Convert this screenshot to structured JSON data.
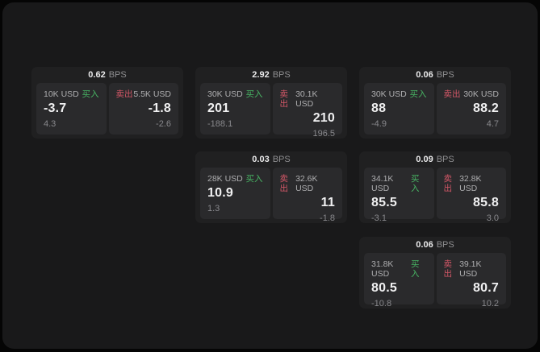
{
  "colors": {
    "buy_green": "#48b564",
    "sell_red": "#d35767",
    "window_bg": "#19191a",
    "card_bg": "#202021",
    "panel_bg": "#2a2a2c"
  },
  "cards": [
    {
      "bps_value": "0.62",
      "bps_unit": "BPS",
      "buy": {
        "amount": "10K USD",
        "side_label": "买入",
        "value": "-3.7",
        "sub_value": "4.3"
      },
      "sell": {
        "side_label": "卖出",
        "amount": "5.5K USD",
        "value": "-1.8",
        "sub_value": "-2.6"
      }
    },
    {
      "bps_value": "2.92",
      "bps_unit": "BPS",
      "buy": {
        "amount": "30K USD",
        "side_label": "买入",
        "value": "201",
        "sub_value": "-188.1"
      },
      "sell": {
        "side_label": "卖出",
        "amount": "30.1K USD",
        "value": "210",
        "sub_value": "196.5"
      }
    },
    {
      "bps_value": "0.06",
      "bps_unit": "BPS",
      "buy": {
        "amount": "30K USD",
        "side_label": "买入",
        "value": "88",
        "sub_value": "-4.9"
      },
      "sell": {
        "side_label": "卖出",
        "amount": "30K USD",
        "value": "88.2",
        "sub_value": "4.7"
      }
    },
    {
      "bps_value": "0.03",
      "bps_unit": "BPS",
      "buy": {
        "amount": "28K USD",
        "side_label": "买入",
        "value": "10.9",
        "sub_value": "1.3"
      },
      "sell": {
        "side_label": "卖出",
        "amount": "32.6K USD",
        "value": "11",
        "sub_value": "-1.8"
      }
    },
    {
      "bps_value": "0.09",
      "bps_unit": "BPS",
      "buy": {
        "amount": "34.1K USD",
        "side_label": "买入",
        "value": "85.5",
        "sub_value": "-3.1"
      },
      "sell": {
        "side_label": "卖出",
        "amount": "32.8K USD",
        "value": "85.8",
        "sub_value": "3.0"
      }
    },
    {
      "bps_value": "0.06",
      "bps_unit": "BPS",
      "buy": {
        "amount": "31.8K USD",
        "side_label": "买入",
        "value": "80.5",
        "sub_value": "-10.8"
      },
      "sell": {
        "side_label": "卖出",
        "amount": "39.1K USD",
        "value": "80.7",
        "sub_value": "10.2"
      }
    }
  ]
}
